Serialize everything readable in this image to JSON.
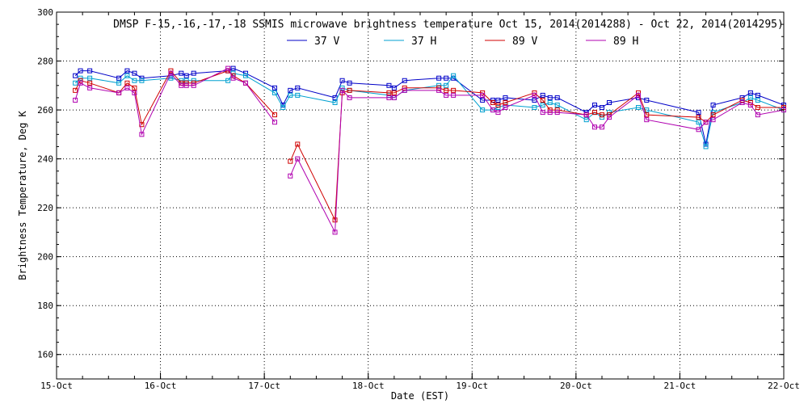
{
  "chart_data": {
    "type": "line",
    "title": "DMSP F-15,-16,-17,-18 SSMIS microwave brightness temperature Oct 15, 2014(2014288) - Oct 22, 2014(2014295)",
    "xlabel": "Date (EST)",
    "ylabel": "Brightness Temperature, Deg K",
    "xlim": [
      0,
      7
    ],
    "ylim": [
      150,
      300
    ],
    "yticks": [
      160,
      180,
      200,
      220,
      240,
      260,
      280,
      300
    ],
    "xtick_labels": [
      "15-Oct",
      "16-Oct",
      "17-Oct",
      "18-Oct",
      "19-Oct",
      "20-Oct",
      "21-Oct",
      "22-Oct"
    ],
    "grid": true,
    "legend_placement": "top-center",
    "series": [
      {
        "name": "37 V",
        "color": "#0000c8",
        "points": [
          [
            0.18,
            274
          ],
          [
            0.23,
            276
          ],
          [
            0.32,
            276
          ],
          [
            0.6,
            273
          ],
          [
            0.68,
            276
          ],
          [
            0.75,
            275
          ],
          [
            0.82,
            273
          ],
          [
            1.1,
            274
          ],
          [
            1.2,
            275
          ],
          [
            1.25,
            274
          ],
          [
            1.32,
            275
          ],
          [
            1.65,
            276
          ],
          [
            1.7,
            277
          ],
          [
            1.82,
            275
          ],
          [
            2.1,
            269
          ],
          [
            2.18,
            262
          ],
          [
            2.25,
            268
          ],
          [
            2.32,
            269
          ],
          [
            2.68,
            265
          ],
          [
            2.75,
            272
          ],
          [
            2.82,
            271
          ],
          [
            3.2,
            270
          ],
          [
            3.25,
            269
          ],
          [
            3.35,
            272
          ],
          [
            3.68,
            273
          ],
          [
            3.75,
            273
          ],
          [
            3.82,
            273
          ],
          [
            4.1,
            264
          ],
          [
            4.2,
            264
          ],
          [
            4.25,
            264
          ],
          [
            4.32,
            265
          ],
          [
            4.6,
            264
          ],
          [
            4.68,
            266
          ],
          [
            4.75,
            265
          ],
          [
            4.82,
            265
          ],
          [
            5.1,
            259
          ],
          [
            5.18,
            262
          ],
          [
            5.25,
            261
          ],
          [
            5.32,
            263
          ],
          [
            5.6,
            265
          ],
          [
            5.68,
            264
          ],
          [
            6.18,
            259
          ],
          [
            6.25,
            246
          ],
          [
            6.32,
            262
          ],
          [
            6.6,
            265
          ],
          [
            6.68,
            267
          ],
          [
            6.75,
            266
          ],
          [
            7.0,
            262
          ]
        ]
      },
      {
        "name": "37 H",
        "color": "#00a0d0",
        "points": [
          [
            0.18,
            271
          ],
          [
            0.23,
            273
          ],
          [
            0.32,
            273
          ],
          [
            0.6,
            271
          ],
          [
            0.68,
            274
          ],
          [
            0.75,
            272
          ],
          [
            0.82,
            272
          ],
          [
            1.1,
            273
          ],
          [
            1.2,
            272
          ],
          [
            1.25,
            272
          ],
          [
            1.32,
            272
          ],
          [
            1.65,
            272
          ],
          [
            1.7,
            275
          ],
          [
            1.82,
            274
          ],
          [
            2.1,
            267
          ],
          [
            2.18,
            261
          ],
          [
            2.25,
            266
          ],
          [
            2.32,
            266
          ],
          [
            2.68,
            263
          ],
          [
            2.75,
            269
          ],
          [
            2.82,
            268
          ],
          [
            3.2,
            266
          ],
          [
            3.25,
            265
          ],
          [
            3.35,
            268
          ],
          [
            3.68,
            270
          ],
          [
            3.75,
            270
          ],
          [
            3.82,
            274
          ],
          [
            4.1,
            260
          ],
          [
            4.2,
            260
          ],
          [
            4.25,
            261
          ],
          [
            4.32,
            262
          ],
          [
            4.6,
            261
          ],
          [
            4.68,
            262
          ],
          [
            4.75,
            263
          ],
          [
            4.82,
            262
          ],
          [
            5.1,
            256
          ],
          [
            5.18,
            259
          ],
          [
            5.25,
            257
          ],
          [
            5.32,
            259
          ],
          [
            5.6,
            261
          ],
          [
            5.68,
            260
          ],
          [
            6.18,
            255
          ],
          [
            6.25,
            245
          ],
          [
            6.32,
            259
          ],
          [
            6.6,
            263
          ],
          [
            6.68,
            265
          ],
          [
            6.75,
            264
          ],
          [
            7.0,
            260
          ]
        ]
      },
      {
        "name": "89 V",
        "color": "#d00000",
        "points": [
          [
            0.18,
            268
          ],
          [
            0.23,
            272
          ],
          [
            0.32,
            271
          ],
          [
            0.6,
            267
          ],
          [
            0.68,
            271
          ],
          [
            0.75,
            269
          ],
          [
            0.82,
            254
          ],
          [
            1.1,
            276
          ],
          [
            1.2,
            271
          ],
          [
            1.25,
            271
          ],
          [
            1.32,
            271
          ],
          [
            1.65,
            276
          ],
          [
            1.7,
            274
          ],
          [
            1.82,
            271
          ],
          [
            2.1,
            258
          ],
          [
            null,
            null
          ],
          [
            2.25,
            239
          ],
          [
            2.32,
            246
          ],
          [
            2.68,
            215
          ],
          [
            2.75,
            267
          ],
          [
            2.82,
            268
          ],
          [
            3.2,
            267
          ],
          [
            3.25,
            267
          ],
          [
            3.35,
            269
          ],
          [
            3.68,
            269
          ],
          [
            3.75,
            268
          ],
          [
            3.82,
            268
          ],
          [
            4.1,
            267
          ],
          [
            4.2,
            263
          ],
          [
            4.25,
            262
          ],
          [
            4.32,
            263
          ],
          [
            4.6,
            267
          ],
          [
            4.68,
            264
          ],
          [
            4.75,
            260
          ],
          [
            4.82,
            260
          ],
          [
            5.1,
            258
          ],
          [
            5.18,
            259
          ],
          [
            5.25,
            258
          ],
          [
            5.32,
            258
          ],
          [
            5.6,
            267
          ],
          [
            5.68,
            258
          ],
          [
            6.18,
            257
          ],
          [
            6.25,
            255
          ],
          [
            6.32,
            258
          ],
          [
            6.6,
            264
          ],
          [
            6.68,
            263
          ],
          [
            6.75,
            261
          ],
          [
            7.0,
            261
          ]
        ]
      },
      {
        "name": "89 H",
        "color": "#b000b0",
        "points": [
          [
            0.18,
            264
          ],
          [
            0.23,
            271
          ],
          [
            0.32,
            269
          ],
          [
            0.6,
            267
          ],
          [
            0.68,
            269
          ],
          [
            0.75,
            267
          ],
          [
            0.82,
            250
          ],
          [
            1.1,
            275
          ],
          [
            1.2,
            270
          ],
          [
            1.25,
            270
          ],
          [
            1.32,
            270
          ],
          [
            1.65,
            277
          ],
          [
            1.7,
            273
          ],
          [
            1.82,
            271
          ],
          [
            2.1,
            255
          ],
          [
            null,
            null
          ],
          [
            2.25,
            233
          ],
          [
            2.32,
            240
          ],
          [
            2.68,
            210
          ],
          [
            2.75,
            268
          ],
          [
            2.82,
            265
          ],
          [
            3.2,
            265
          ],
          [
            3.25,
            265
          ],
          [
            3.35,
            268
          ],
          [
            3.68,
            268
          ],
          [
            3.75,
            266
          ],
          [
            3.82,
            266
          ],
          [
            4.1,
            266
          ],
          [
            4.2,
            260
          ],
          [
            4.25,
            259
          ],
          [
            4.32,
            261
          ],
          [
            4.6,
            266
          ],
          [
            4.68,
            259
          ],
          [
            4.75,
            259
          ],
          [
            4.82,
            259
          ],
          [
            5.1,
            258
          ],
          [
            5.18,
            253
          ],
          [
            5.25,
            253
          ],
          [
            5.32,
            257
          ],
          [
            5.6,
            266
          ],
          [
            5.68,
            256
          ],
          [
            6.18,
            252
          ],
          [
            6.25,
            255
          ],
          [
            6.32,
            256
          ],
          [
            6.6,
            263
          ],
          [
            6.68,
            262
          ],
          [
            6.75,
            258
          ],
          [
            7.0,
            260
          ]
        ]
      }
    ]
  }
}
